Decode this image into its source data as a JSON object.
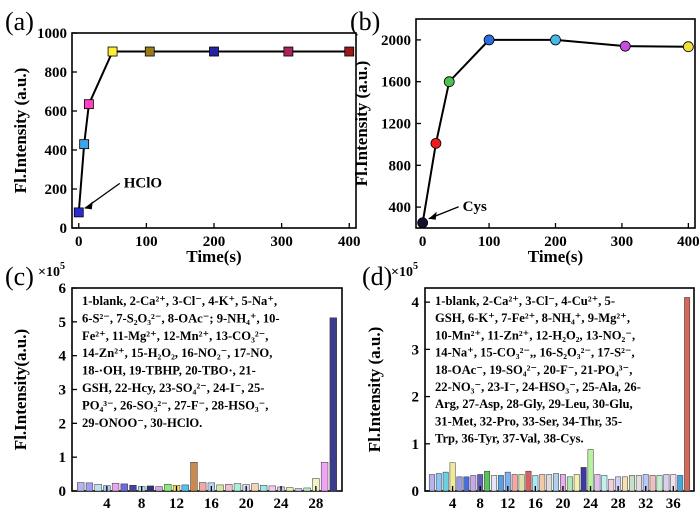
{
  "chart_data": [
    {
      "id": "a",
      "type": "line",
      "panel_label": "(a)",
      "xlabel": "Time(s)",
      "ylabel": "Fl.Intensity (a.u.)",
      "xlim": [
        -10,
        410
      ],
      "ylim": [
        0,
        1000
      ],
      "xticks": [
        0,
        100,
        200,
        300,
        400
      ],
      "yticks": [
        0,
        200,
        400,
        600,
        800,
        1000
      ],
      "x": [
        0,
        8,
        15,
        50,
        105,
        200,
        310,
        400
      ],
      "y": [
        80,
        430,
        635,
        905,
        905,
        905,
        905,
        905
      ],
      "marker_colors": [
        "#2b2bd6",
        "#3fa5e8",
        "#ff40c0",
        "#ffee33",
        "#9a7a1a",
        "#2323a8",
        "#a8245a",
        "#9a1a1a"
      ],
      "annotation": "HClO"
    },
    {
      "id": "b",
      "type": "line",
      "panel_label": "(b)",
      "xlabel": "Time(s)",
      "ylabel": "Fl.Intensity (a.u.)",
      "xlim": [
        -10,
        410
      ],
      "ylim": [
        200,
        2200
      ],
      "xticks": [
        0,
        100,
        200,
        300,
        400
      ],
      "yticks": [
        400,
        800,
        1200,
        1600,
        2000
      ],
      "x": [
        0,
        20,
        40,
        100,
        200,
        305,
        400
      ],
      "y": [
        250,
        1010,
        1600,
        2000,
        2000,
        1940,
        1935
      ],
      "marker_colors": [
        "#101030",
        "#ee1c1c",
        "#4ec24e",
        "#2a6ee0",
        "#47b8e8",
        "#c74fe0",
        "#ece23a"
      ],
      "annotation": "Cys"
    },
    {
      "id": "c",
      "type": "bar",
      "panel_label": "(c)",
      "ylabel": "Fl.Intensity(a.u.)",
      "multiplier": "×10",
      "multiplier_exp": "5",
      "ylim": [
        0,
        6
      ],
      "xlim": [
        0,
        31
      ],
      "yticks": [
        0,
        1,
        2,
        3,
        4,
        5,
        6
      ],
      "xticks": [
        4,
        8,
        12,
        16,
        20,
        24,
        28
      ],
      "categories": [
        "1",
        "2",
        "3",
        "4",
        "5",
        "6",
        "7",
        "8",
        "9",
        "10",
        "11",
        "12",
        "13",
        "14",
        "15",
        "16",
        "17",
        "18",
        "19",
        "20",
        "21",
        "22",
        "23",
        "24",
        "25",
        "26",
        "27",
        "28",
        "29",
        "30"
      ],
      "values": [
        0.25,
        0.24,
        0.2,
        0.16,
        0.23,
        0.21,
        0.17,
        0.13,
        0.15,
        0.13,
        0.2,
        0.17,
        0.18,
        0.85,
        0.25,
        0.24,
        0.18,
        0.2,
        0.22,
        0.19,
        0.22,
        0.17,
        0.15,
        0.12,
        0.1,
        0.07,
        0.09,
        0.37,
        0.85,
        5.12
      ],
      "colors": [
        "#b4b4f0",
        "#9e9ef2",
        "#bbe3ee",
        "#a9cdfa",
        "#e6a7f0",
        "#6a6adc",
        "#44449e",
        "#aee4f2",
        "#2f2f7a",
        "#d6a8de",
        "#8cec7a",
        "#f0e06a",
        "#55bdf0",
        "#c98a50",
        "#f0a8a8",
        "#b6d6f2",
        "#d6e8a8",
        "#f2c0d6",
        "#a8f0d8",
        "#d8d8f2",
        "#f0d6b4",
        "#9fe8e8",
        "#f7c8f0",
        "#ccccf7",
        "#f0f0a8",
        "#d0d0e8",
        "#b6f2b6",
        "#f2f2c8",
        "#eea6f2",
        "#3c3c8c"
      ],
      "legend_text": [
        "1-blank, 2-Ca²⁺, 3-Cl⁻, 4-K⁺, 5-Na⁺,",
        "6-S²⁻, 7-S₂O₃²⁻, 8-OAc⁻; 9-NH₄⁺, 10-",
        "Fe²⁺, 11-Mg²⁺, 12-Mn²⁺, 13-CO₃²⁻,",
        "14-Zn²⁺, 15-H₂O₂, 16-NO₂⁻, 17-NO,",
        "18-·OH, 19-TBHP, 20-TBO·, 21-",
        "GSH, 22-Hcy, 23-SO₄²⁻, 24-I⁻, 25-",
        "PO₄³⁻, 26-SO₃²⁻, 27-F⁻, 28-HSO₃⁻,",
        "29-ONOO⁻, 30-HClO."
      ]
    },
    {
      "id": "d",
      "type": "bar",
      "panel_label": "(d)",
      "ylabel": "Fl.Intensity (a.u.)",
      "multiplier": "×10",
      "multiplier_exp": "5",
      "ylim": [
        0,
        4.3
      ],
      "xlim": [
        0,
        39
      ],
      "yticks": [
        0,
        1,
        2,
        3,
        4
      ],
      "xticks": [
        4,
        8,
        12,
        16,
        20,
        24,
        28,
        32,
        36
      ],
      "categories": [
        "1",
        "2",
        "3",
        "4",
        "5",
        "6",
        "7",
        "8",
        "9",
        "10",
        "11",
        "12",
        "13",
        "14",
        "15",
        "16",
        "17",
        "18",
        "19",
        "20",
        "21",
        "22",
        "23",
        "24",
        "25",
        "26",
        "27",
        "28",
        "29",
        "30",
        "31",
        "32",
        "33",
        "34",
        "35",
        "36",
        "37",
        "38"
      ],
      "values": [
        0.35,
        0.37,
        0.4,
        0.6,
        0.3,
        0.3,
        0.33,
        0.35,
        0.42,
        0.33,
        0.33,
        0.4,
        0.35,
        0.35,
        0.42,
        0.33,
        0.35,
        0.35,
        0.37,
        0.35,
        0.3,
        0.35,
        0.5,
        0.88,
        0.35,
        0.33,
        0.25,
        0.3,
        0.3,
        0.33,
        0.33,
        0.35,
        0.33,
        0.33,
        0.35,
        0.35,
        0.33,
        4.1
      ],
      "colors": [
        "#b4b4f0",
        "#8fc4f6",
        "#6ecfe0",
        "#f0e89a",
        "#9a9ae6",
        "#4a6ed8",
        "#c8a8e8",
        "#6060b8",
        "#59c459",
        "#e6e6f7",
        "#5aa0e0",
        "#7fb0f2",
        "#f0a8a8",
        "#e0e0a8",
        "#d86060",
        "#a8e8f2",
        "#f2c8a8",
        "#dcdcdc",
        "#b0d0f0",
        "#e8b0e8",
        "#b0e8b0",
        "#f2f2b0",
        "#3a3aa0",
        "#b8f2a0",
        "#e0c0f0",
        "#c0f0f0",
        "#f0d0e0",
        "#d0d0f8",
        "#f8e0b0",
        "#c8e0c8",
        "#e0e0e0",
        "#b8c8f8",
        "#f0c0c0",
        "#c0f0d0",
        "#d8d0f0",
        "#f0e0f0",
        "#4aa6e0",
        "#d26a5a"
      ],
      "legend_text": [
        "1-blank, 2-Ca²⁺, 3-Cl⁻, 4-Cu²⁺, 5-",
        "GSH, 6-K⁺, 7-Fe²⁺, 8-NH₄⁺, 9-Mg²⁺,",
        "10-Mn²⁺, 11-Zn²⁺, 12-H₂O₂, 13-NO₂⁻,",
        "14-Na⁺, 15-CO₃²⁻,, 16-S₂O₃²⁻, 17-S²⁻,",
        "18-OAc⁻, 19-SO₄²⁻, 20-F⁻, 21-PO₄³⁻,",
        "22-NO₃⁻, 23-I⁻, 24-HSO₃⁻, 25-Ala, 26-",
        "Arg, 27-Asp, 28-Gly, 29-Leu, 30-Glu,",
        "31-Met, 32-Pro, 33-Ser, 34-Thr, 35-",
        "Trp, 36-Tyr, 37-Val, 38-Cys."
      ]
    }
  ]
}
